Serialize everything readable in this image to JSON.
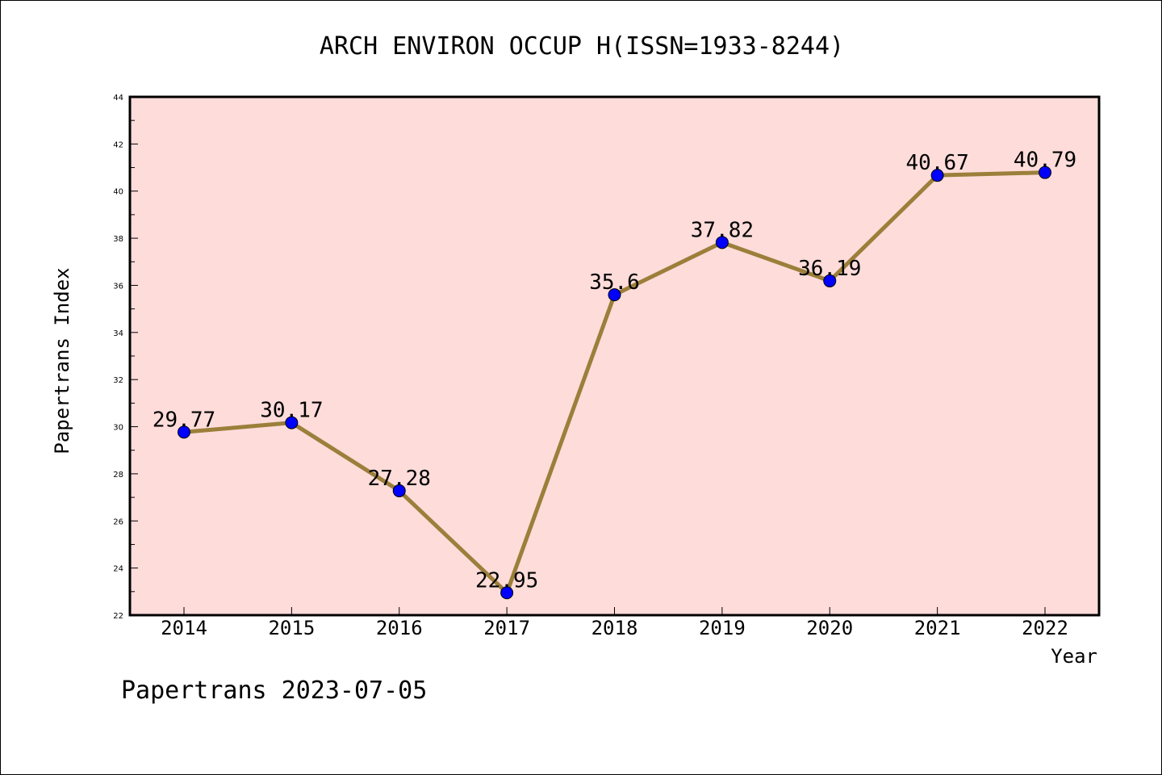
{
  "chart_data": {
    "type": "line",
    "title": "ARCH ENVIRON OCCUP H(ISSN=1933-8244)",
    "xlabel": "Year",
    "ylabel": "Papertrans Index",
    "categories": [
      "2014",
      "2015",
      "2016",
      "2017",
      "2018",
      "2019",
      "2020",
      "2021",
      "2022"
    ],
    "series": [
      {
        "values": [
          29.77,
          30.17,
          27.28,
          22.95,
          35.6,
          37.82,
          36.19,
          40.67,
          40.79
        ],
        "labels": [
          "29.77",
          "30.17",
          "27.28",
          "22.95",
          "35.6",
          "37.82",
          "36.19",
          "40.67",
          "40.79"
        ]
      }
    ],
    "ylim": [
      22,
      44
    ],
    "yticks": [
      "22",
      "24",
      "26",
      "28",
      "30",
      "32",
      "34",
      "36",
      "38",
      "40",
      "42",
      "44"
    ],
    "grid": false,
    "colors": {
      "plot_background": "#FDDCDA",
      "line": "#9B7F3A",
      "marker": "#0000FF",
      "axes": "#000000"
    }
  },
  "footer": "Papertrans 2023-07-05"
}
